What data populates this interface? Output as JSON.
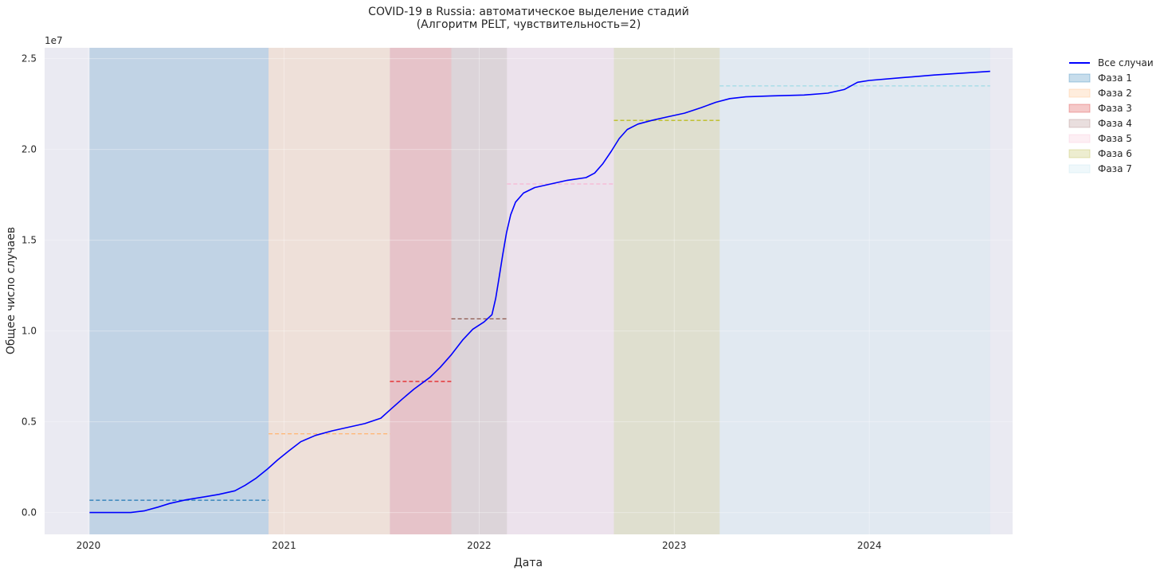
{
  "chart_data": {
    "type": "line",
    "title": "COVID-19 в Russia: автоматическое выделение стадий",
    "subtitle": "(Алгоритм PELT, чувствительность=2)",
    "xlabel": "Дата",
    "ylabel": "Общее число случаев",
    "y_multiplier": "1e7",
    "xlim": [
      "2019-10-11",
      "2024-09-25"
    ],
    "ylim": [
      -0.12,
      2.56
    ],
    "x_ticks": [
      "2020",
      "2021",
      "2022",
      "2023",
      "2024"
    ],
    "y_ticks": [
      "0.0",
      "0.5",
      "1.0",
      "1.5",
      "2.0",
      "2.5"
    ],
    "legend_position": "outside-top-right",
    "series": [
      {
        "name": "Все случаи",
        "color": "#0000ff",
        "points": [
          [
            "2020-01-03",
            0.0
          ],
          [
            "2020-03-20",
            0.0
          ],
          [
            "2020-04-15",
            0.01
          ],
          [
            "2020-05-10",
            0.03
          ],
          [
            "2020-06-01",
            0.05
          ],
          [
            "2020-07-01",
            0.07
          ],
          [
            "2020-08-01",
            0.085
          ],
          [
            "2020-09-01",
            0.1
          ],
          [
            "2020-10-01",
            0.12
          ],
          [
            "2020-10-20",
            0.15
          ],
          [
            "2020-11-10",
            0.19
          ],
          [
            "2020-12-01",
            0.24
          ],
          [
            "2020-12-20",
            0.29
          ],
          [
            "2021-01-10",
            0.34
          ],
          [
            "2021-02-01",
            0.39
          ],
          [
            "2021-03-01",
            0.425
          ],
          [
            "2021-04-01",
            0.45
          ],
          [
            "2021-05-01",
            0.47
          ],
          [
            "2021-06-01",
            0.49
          ],
          [
            "2021-07-01",
            0.52
          ],
          [
            "2021-07-20",
            0.57
          ],
          [
            "2021-08-10",
            0.625
          ],
          [
            "2021-09-01",
            0.68
          ],
          [
            "2021-10-01",
            0.745
          ],
          [
            "2021-10-20",
            0.8
          ],
          [
            "2021-11-10",
            0.87
          ],
          [
            "2021-12-01",
            0.95
          ],
          [
            "2021-12-20",
            1.01
          ],
          [
            "2022-01-10",
            1.05
          ],
          [
            "2022-01-25",
            1.09
          ],
          [
            "2022-02-01",
            1.18
          ],
          [
            "2022-02-07",
            1.29
          ],
          [
            "2022-02-14",
            1.42
          ],
          [
            "2022-02-21",
            1.54
          ],
          [
            "2022-03-01",
            1.64
          ],
          [
            "2022-03-10",
            1.71
          ],
          [
            "2022-03-25",
            1.76
          ],
          [
            "2022-04-15",
            1.79
          ],
          [
            "2022-05-15",
            1.81
          ],
          [
            "2022-06-15",
            1.83
          ],
          [
            "2022-07-20",
            1.845
          ],
          [
            "2022-08-05",
            1.87
          ],
          [
            "2022-08-20",
            1.92
          ],
          [
            "2022-09-05",
            1.99
          ],
          [
            "2022-09-20",
            2.06
          ],
          [
            "2022-10-05",
            2.11
          ],
          [
            "2022-10-25",
            2.14
          ],
          [
            "2022-11-20",
            2.16
          ],
          [
            "2022-12-20",
            2.18
          ],
          [
            "2023-01-20",
            2.2
          ],
          [
            "2023-02-20",
            2.23
          ],
          [
            "2023-03-20",
            2.26
          ],
          [
            "2023-04-15",
            2.28
          ],
          [
            "2023-05-15",
            2.29
          ],
          [
            "2023-07-01",
            2.295
          ],
          [
            "2023-09-01",
            2.3
          ],
          [
            "2023-10-15",
            2.31
          ],
          [
            "2023-11-15",
            2.33
          ],
          [
            "2023-12-10",
            2.37
          ],
          [
            "2024-01-01",
            2.38
          ],
          [
            "2024-03-01",
            2.395
          ],
          [
            "2024-05-01",
            2.41
          ],
          [
            "2024-08-14",
            2.43
          ]
        ]
      }
    ],
    "phases": [
      {
        "name": "Фаза 1",
        "start": "2020-01-03",
        "end": "2020-12-03",
        "mean": 0.068,
        "fill": "#1f77b4",
        "line": "#1f77b4"
      },
      {
        "name": "Фаза 2",
        "start": "2020-12-03",
        "end": "2021-07-18",
        "mean": 0.434,
        "fill": "#ffb878",
        "line": "#ffb878"
      },
      {
        "name": "Фаза 3",
        "start": "2021-07-18",
        "end": "2021-11-10",
        "mean": 0.722,
        "fill": "#d62728",
        "line": "#e41a1c"
      },
      {
        "name": "Фаза 4",
        "start": "2021-11-10",
        "end": "2022-02-22",
        "mean": 1.067,
        "fill": "#a67d7a",
        "line": "#8c564b"
      },
      {
        "name": "Фаза 5",
        "start": "2022-02-22",
        "end": "2022-09-10",
        "mean": 1.81,
        "fill": "#f7c1d5",
        "line": "#f7b6d2"
      },
      {
        "name": "Фаза 6",
        "start": "2022-09-10",
        "end": "2023-03-27",
        "mean": 2.16,
        "fill": "#b6b645",
        "line": "#bcbd22"
      },
      {
        "name": "Фаза 7",
        "start": "2023-03-27",
        "end": "2024-08-14",
        "mean": 2.35,
        "fill": "#bfe4ef",
        "line": "#9edae5"
      }
    ]
  }
}
